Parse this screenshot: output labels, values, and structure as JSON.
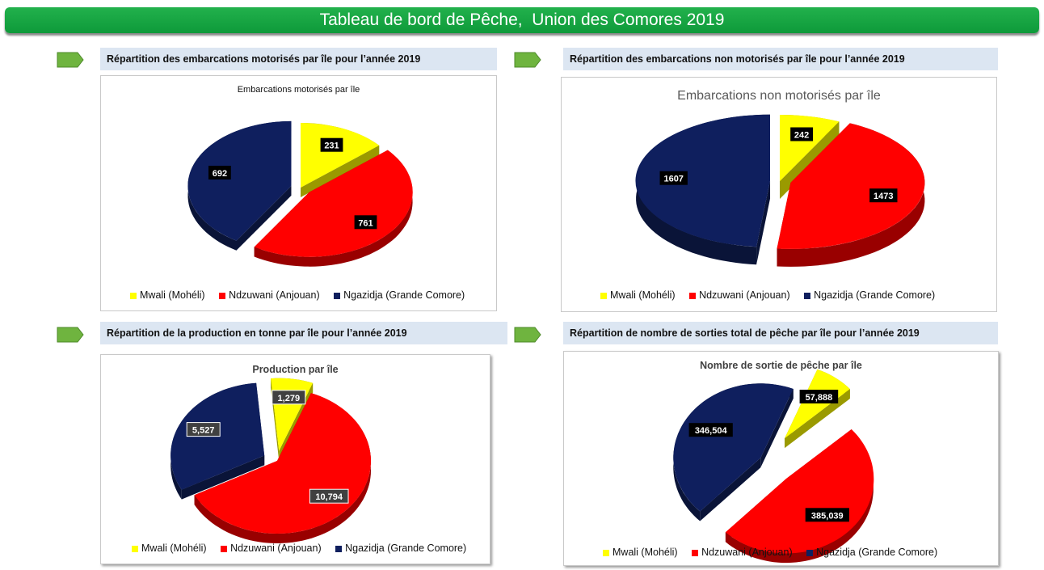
{
  "page_title": "Tableau de bord de Pêche,  Union des Comores 2019",
  "colors": {
    "mwali": "#ffff00",
    "ndzuwani": "#ff0000",
    "ngazidja": "#0f1f5e",
    "header_bg": "#dce6f2",
    "banner": "#1aa645"
  },
  "legend": [
    "Mwali (Mohéli)",
    "Ndzuwani (Anjouan)",
    "Ngazidja (Grande Comore)"
  ],
  "sections": [
    {
      "header": "Répartition des embarcations motorisés par île  pour l’année 2019"
    },
    {
      "header": "Répartition des embarcations non motorisés par île  pour l’année 2019"
    },
    {
      "header": "Répartition de la production en tonne par île pour l’année 2019"
    },
    {
      "header": "Répartition de nombre de sorties total  de pêche par île  pour l’année 2019"
    }
  ],
  "chart_data": [
    {
      "type": "pie",
      "title": "Embarcations motorisés par île",
      "categories": [
        "Mwali (Mohéli)",
        "Ndzuwani (Anjouan)",
        "Ngazidja (Grande Comore)"
      ],
      "values": [
        231,
        761,
        692
      ],
      "labels": [
        "231",
        "761",
        "692"
      ],
      "legend_position": "bottom"
    },
    {
      "type": "pie",
      "title": "Embarcations non motorisés par île",
      "categories": [
        "Mwali (Mohéli)",
        "Ndzuwani (Anjouan)",
        "Ngazidja (Grande Comore)"
      ],
      "values": [
        242,
        1473,
        1607
      ],
      "labels": [
        "242",
        "1473",
        "1607"
      ],
      "legend_position": "bottom"
    },
    {
      "type": "pie",
      "title": "Production par île",
      "categories": [
        "Mwali (Mohéli)",
        "Ndzuwani (Anjouan)",
        "Ngazidja (Grande Comore)"
      ],
      "values": [
        1279,
        10794,
        5527
      ],
      "labels": [
        "1,279",
        "10,794",
        "5,527"
      ],
      "legend_position": "bottom"
    },
    {
      "type": "pie",
      "title": "Nombre de sortie de pêche par île",
      "categories": [
        "Mwali (Mohéli)",
        "Ndzuwani (Anjouan)",
        "Ngazidja (Grande Comore)"
      ],
      "values": [
        57888,
        385039,
        346504
      ],
      "labels": [
        "57,888",
        "385,039",
        "346,504"
      ],
      "legend_position": "bottom"
    }
  ]
}
